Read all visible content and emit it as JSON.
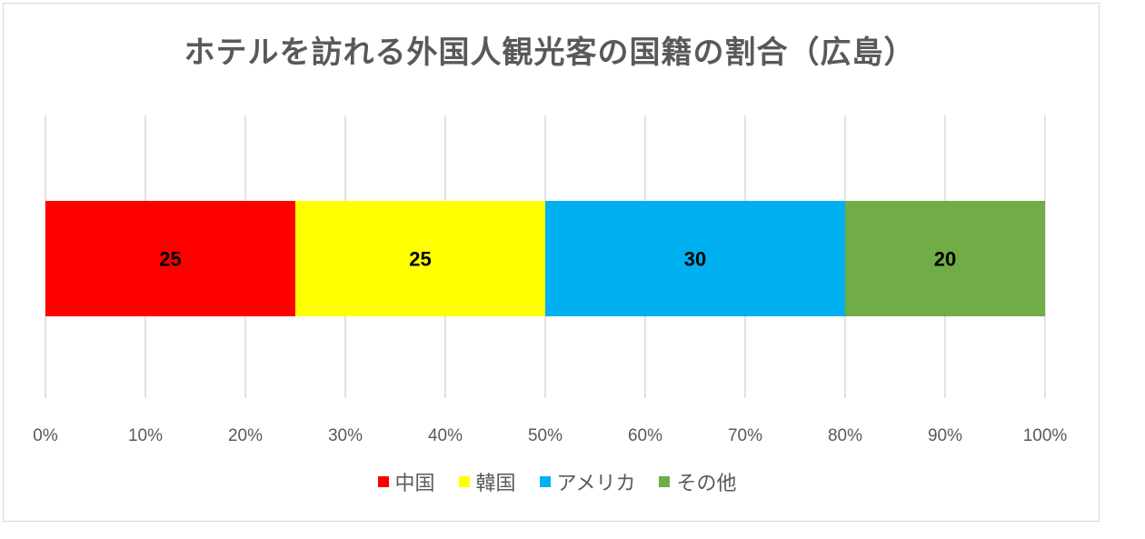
{
  "chart_data": {
    "type": "bar",
    "orientation": "horizontal",
    "stacked": true,
    "title": "ホテルを訪れる外国人観光客の国籍の割合（広島）",
    "xlabel": "",
    "ylabel": "",
    "xlim": [
      0,
      100
    ],
    "x_ticks": [
      "0%",
      "10%",
      "20%",
      "30%",
      "40%",
      "50%",
      "60%",
      "70%",
      "80%",
      "90%",
      "100%"
    ],
    "grid": true,
    "legend_position": "bottom",
    "series": [
      {
        "name": "中国",
        "values": [
          25
        ],
        "color": "#ff0000"
      },
      {
        "name": "韓国",
        "values": [
          25
        ],
        "color": "#ffff00"
      },
      {
        "name": "アメリカ",
        "values": [
          30
        ],
        "color": "#00b0f0"
      },
      {
        "name": "その他",
        "values": [
          20
        ],
        "color": "#70ad47"
      }
    ]
  }
}
